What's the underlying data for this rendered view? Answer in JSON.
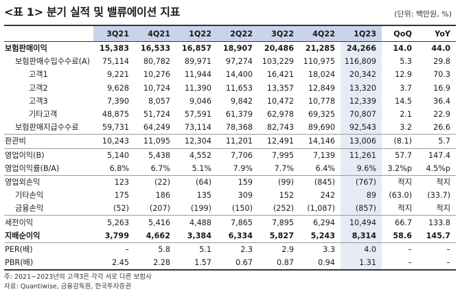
{
  "title": "<표 1> 분기 실적 및 밸류에이션 지표",
  "unit": "(단위: 백만원, %)",
  "columns": [
    "3Q21",
    "4Q21",
    "1Q22",
    "2Q22",
    "3Q22",
    "4Q22",
    "1Q23",
    "QoQ",
    "YoY"
  ],
  "rows": [
    {
      "label": "보험판매이익",
      "values": [
        "15,383",
        "16,533",
        "16,857",
        "18,907",
        "20,486",
        "21,285",
        "24,266",
        "14.0",
        "44.0"
      ]
    },
    {
      "label": "보험판매수입수수료(A)",
      "values": [
        "75,114",
        "80,782",
        "89,971",
        "97,274",
        "103,229",
        "110,975",
        "116,809",
        "5.3",
        "29.8"
      ]
    },
    {
      "label": "고객1",
      "values": [
        "9,221",
        "10,276",
        "11,944",
        "14,400",
        "16,421",
        "18,024",
        "20,342",
        "12.9",
        "70.3"
      ]
    },
    {
      "label": "고객2",
      "values": [
        "9,628",
        "10,724",
        "11,390",
        "11,653",
        "13,357",
        "12,849",
        "13,320",
        "3.7",
        "16.9"
      ]
    },
    {
      "label": "고객3",
      "values": [
        "7,390",
        "8,057",
        "9,046",
        "9,842",
        "10,472",
        "10,778",
        "12,339",
        "14.5",
        "36.4"
      ]
    },
    {
      "label": "기타고객",
      "values": [
        "48,875",
        "51,724",
        "57,591",
        "61,379",
        "62,978",
        "69,325",
        "70,807",
        "2.1",
        "22.9"
      ]
    },
    {
      "label": "보험판매지급수수료",
      "values": [
        "59,731",
        "64,249",
        "73,114",
        "78,368",
        "82,743",
        "89,690",
        "92,543",
        "3.2",
        "26.6"
      ]
    },
    {
      "label": "판관비",
      "values": [
        "10,243",
        "11,095",
        "12,304",
        "11,201",
        "12,491",
        "14,146",
        "13,006",
        "(8.1)",
        "5.7"
      ]
    },
    {
      "label": "영업이익(B)",
      "values": [
        "5,140",
        "5,438",
        "4,552",
        "7,706",
        "7,995",
        "7,139",
        "11,261",
        "57.7",
        "147.4"
      ]
    },
    {
      "label": "영업이익률(B/A)",
      "values": [
        "6.8%",
        "6.7%",
        "5.1%",
        "7.9%",
        "7.7%",
        "6.4%",
        "9.6%",
        "3.2%p",
        "4.5%p"
      ]
    },
    {
      "label": "영업외손익",
      "values": [
        "123",
        "(22)",
        "(64)",
        "159",
        "(99)",
        "(845)",
        "(767)",
        "적지",
        "적지"
      ]
    },
    {
      "label": "기타손익",
      "values": [
        "175",
        "186",
        "135",
        "309",
        "152",
        "242",
        "89",
        "(63.0)",
        "(33.7)"
      ]
    },
    {
      "label": "금융손익",
      "values": [
        "(52)",
        "(207)",
        "(199)",
        "(150)",
        "(252)",
        "(1,087)",
        "(857)",
        "적지",
        "적지"
      ]
    },
    {
      "label": "세전이익",
      "values": [
        "5,263",
        "5,416",
        "4,488",
        "7,865",
        "7,895",
        "6,294",
        "10,494",
        "66.7",
        "133.8"
      ]
    },
    {
      "label": "지배순이익",
      "values": [
        "3,799",
        "4,662",
        "3,384",
        "6,334",
        "5,827",
        "5,243",
        "8,314",
        "58.6",
        "145.7"
      ]
    },
    {
      "label": "PER(배)",
      "values": [
        "–",
        "5.8",
        "5.1",
        "2.3",
        "2.9",
        "3.3",
        "4.0",
        "–",
        "–"
      ]
    },
    {
      "label": "PBR(배)",
      "values": [
        "2.45",
        "2.28",
        "1.57",
        "0.67",
        "0.87",
        "0.94",
        "1.31",
        "–",
        "–"
      ]
    }
  ],
  "notes": [
    "주: 2021~2023년의 고객3은 각각 서로 다른 보험사",
    "자료: Quantiwise, 금융감독원, 한국투자증권"
  ]
}
